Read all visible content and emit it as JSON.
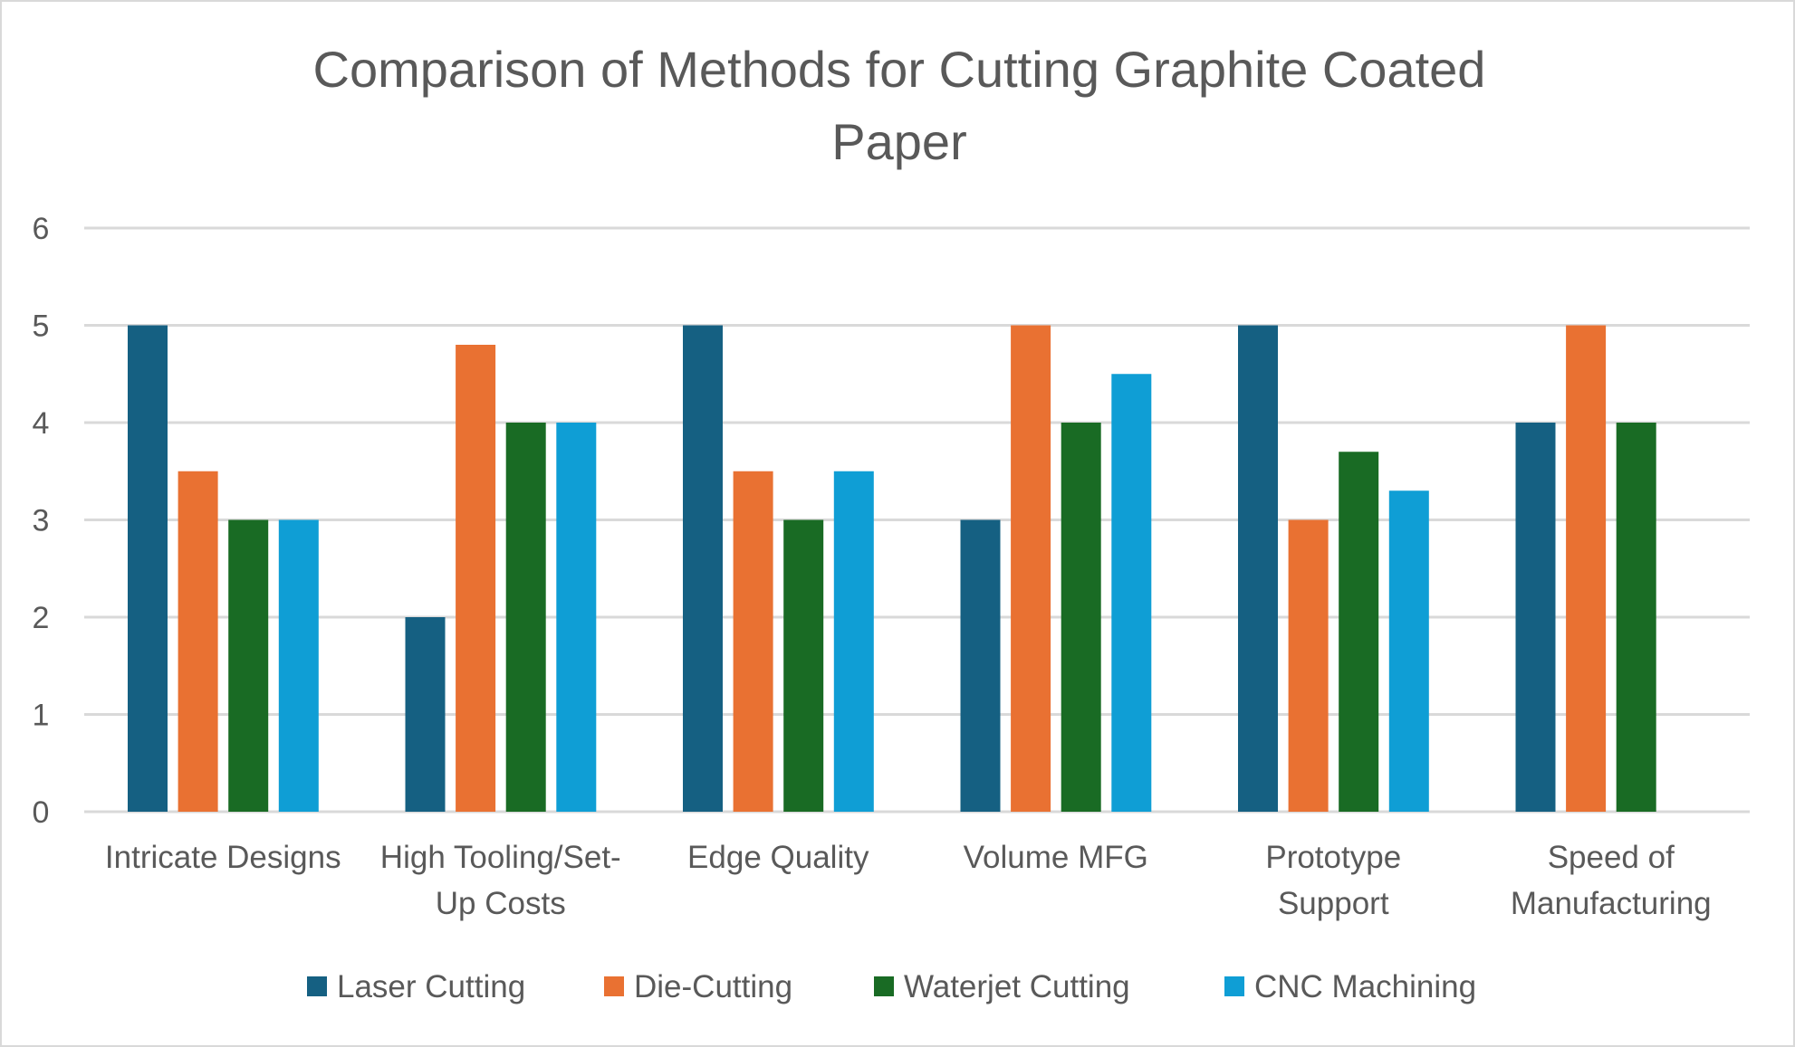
{
  "chart_data": {
    "type": "bar",
    "title": "Comparison of Methods for Cutting Graphite Coated Paper",
    "title_lines": [
      "Comparison of Methods for Cutting Graphite Coated",
      "Paper"
    ],
    "categories": [
      "Intricate Designs",
      "High Tooling/Set-Up Costs",
      "Edge Quality",
      "Volume MFG",
      "Prototype Support",
      "Speed of Manufacturing"
    ],
    "category_label_lines": [
      [
        "Intricate Designs"
      ],
      [
        "High Tooling/Set-",
        "Up Costs"
      ],
      [
        "Edge Quality"
      ],
      [
        "Volume MFG"
      ],
      [
        "Prototype",
        "Support"
      ],
      [
        "Speed of",
        "Manufacturing"
      ]
    ],
    "series": [
      {
        "name": "Laser Cutting",
        "color": "#156082",
        "values": [
          5,
          2,
          5,
          3,
          5,
          4
        ]
      },
      {
        "name": "Die-Cutting",
        "color": "#E97132",
        "values": [
          3.5,
          4.8,
          3.5,
          5,
          3,
          5
        ]
      },
      {
        "name": "Waterjet Cutting",
        "color": "#196B24",
        "values": [
          3,
          4,
          3,
          4,
          3.7,
          4
        ]
      },
      {
        "name": "CNC Machining",
        "color": "#0F9ED5",
        "values": [
          3,
          4,
          3.5,
          4.5,
          3.3,
          null
        ]
      }
    ],
    "xlabel": "",
    "ylabel": "",
    "ylim": [
      0,
      6
    ],
    "yticks": [
      "0",
      "1",
      "2",
      "3",
      "4",
      "5",
      "6"
    ],
    "grid": true,
    "legend_position": "bottom"
  }
}
